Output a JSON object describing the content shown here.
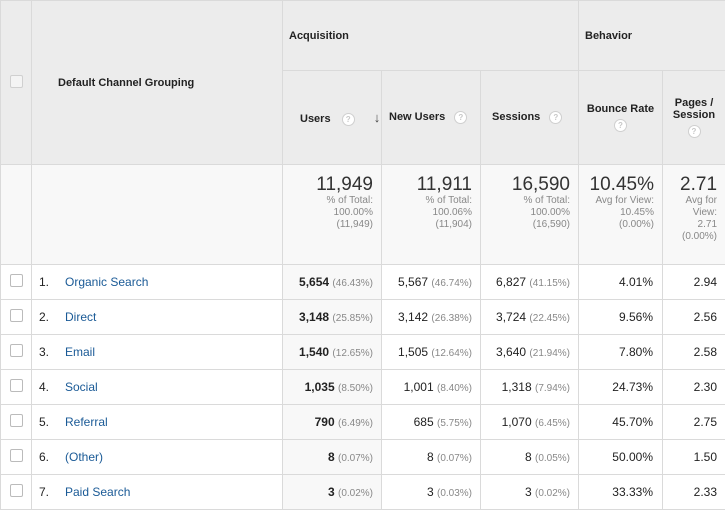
{
  "checkbox_header": "",
  "header": {
    "dimension": "Default Channel Grouping",
    "acquisition": "Acquisition",
    "behavior": "Behavior",
    "users": "Users",
    "new_users": "New Users",
    "sessions": "Sessions",
    "bounce_rate": "Bounce Rate",
    "pages_session_1": "Pages /",
    "pages_session_2": "Session",
    "help_glyph": "?",
    "sort_glyph": "↓"
  },
  "totals": {
    "users": {
      "value": "11,949",
      "l1": "% of Total:",
      "l2": "100.00%",
      "l3": "(11,949)"
    },
    "new_users": {
      "value": "11,911",
      "l1": "% of Total:",
      "l2": "100.06%",
      "l3": "(11,904)"
    },
    "sessions": {
      "value": "16,590",
      "l1": "% of Total:",
      "l2": "100.00%",
      "l3": "(16,590)"
    },
    "bounce_rate": {
      "value": "10.45%",
      "l1": "Avg for View:",
      "l2": "10.45%",
      "l3": "(0.00%)"
    },
    "pages_session": {
      "value": "2.71",
      "l1": "Avg for",
      "l2": "View:",
      "l3": "2.71",
      "l4": "(0.00%)"
    }
  },
  "rows": [
    {
      "idx": "1.",
      "channel": "Organic Search",
      "users": "5,654",
      "users_pct": "(46.43%)",
      "new_users": "5,567",
      "new_users_pct": "(46.74%)",
      "sessions": "6,827",
      "sessions_pct": "(41.15%)",
      "bounce": "4.01%",
      "pages": "2.94"
    },
    {
      "idx": "2.",
      "channel": "Direct",
      "users": "3,148",
      "users_pct": "(25.85%)",
      "new_users": "3,142",
      "new_users_pct": "(26.38%)",
      "sessions": "3,724",
      "sessions_pct": "(22.45%)",
      "bounce": "9.56%",
      "pages": "2.56"
    },
    {
      "idx": "3.",
      "channel": "Email",
      "users": "1,540",
      "users_pct": "(12.65%)",
      "new_users": "1,505",
      "new_users_pct": "(12.64%)",
      "sessions": "3,640",
      "sessions_pct": "(21.94%)",
      "bounce": "7.80%",
      "pages": "2.58"
    },
    {
      "idx": "4.",
      "channel": "Social",
      "users": "1,035",
      "users_pct": "(8.50%)",
      "new_users": "1,001",
      "new_users_pct": "(8.40%)",
      "sessions": "1,318",
      "sessions_pct": "(7.94%)",
      "bounce": "24.73%",
      "pages": "2.30"
    },
    {
      "idx": "5.",
      "channel": "Referral",
      "users": "790",
      "users_pct": "(6.49%)",
      "new_users": "685",
      "new_users_pct": "(5.75%)",
      "sessions": "1,070",
      "sessions_pct": "(6.45%)",
      "bounce": "45.70%",
      "pages": "2.75"
    },
    {
      "idx": "6.",
      "channel": "(Other)",
      "users": "8",
      "users_pct": "(0.07%)",
      "new_users": "8",
      "new_users_pct": "(0.07%)",
      "sessions": "8",
      "sessions_pct": "(0.05%)",
      "bounce": "50.00%",
      "pages": "1.50"
    },
    {
      "idx": "7.",
      "channel": "Paid Search",
      "users": "3",
      "users_pct": "(0.02%)",
      "new_users": "3",
      "new_users_pct": "(0.03%)",
      "sessions": "3",
      "sessions_pct": "(0.02%)",
      "bounce": "33.33%",
      "pages": "2.33"
    }
  ]
}
